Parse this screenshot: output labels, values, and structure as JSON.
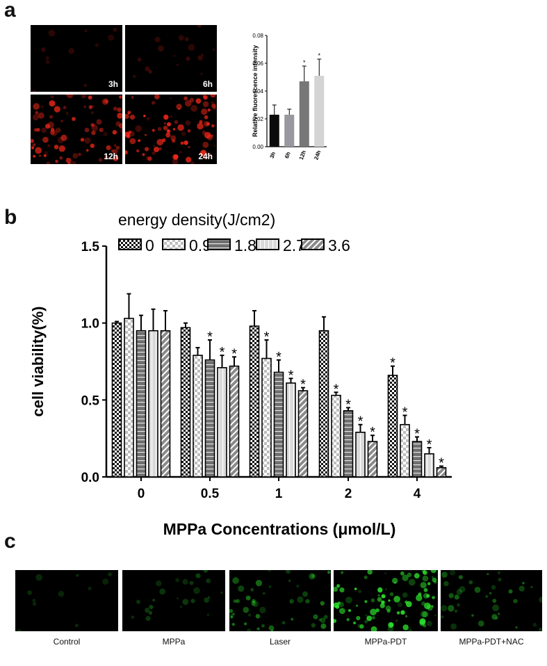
{
  "panels": {
    "a": {
      "letter": "a",
      "images": [
        {
          "label": "3h",
          "level": 0.05
        },
        {
          "label": "6h",
          "level": 0.12
        },
        {
          "label": "12h",
          "level": 0.85
        },
        {
          "label": "24h",
          "level": 0.95
        }
      ],
      "cell_color": "#ff2a1a"
    },
    "b": {
      "letter": "b"
    },
    "c": {
      "letter": "c",
      "images": [
        {
          "label": "Control",
          "level": 0.05
        },
        {
          "label": "MPPa",
          "level": 0.2
        },
        {
          "label": "Laser",
          "level": 0.45
        },
        {
          "label": "MPPa-PDT",
          "level": 1.0
        },
        {
          "label": "MPPa-PDT+NAC",
          "level": 0.35
        }
      ],
      "cell_color": "#2ee82e"
    }
  },
  "chart_data": [
    {
      "type": "bar",
      "categories": [
        "3h",
        "6h",
        "12h",
        "24h"
      ],
      "values": [
        0.023,
        0.023,
        0.047,
        0.051
      ],
      "errors": [
        0.007,
        0.004,
        0.011,
        0.012
      ],
      "significance": [
        "",
        "",
        "*",
        "*"
      ],
      "colors": [
        "#0b0b0b",
        "#98989e",
        "#777777",
        "#d4d4d4"
      ],
      "ylabel": "Relative fluorescence intensity",
      "xlabel": "",
      "ylim": [
        0,
        0.08
      ],
      "yticks": [
        "0.00",
        "0.02",
        "0.04",
        "0.06",
        "0.08"
      ],
      "grid": false
    },
    {
      "type": "bar",
      "categories": [
        "0",
        "0.5",
        "1",
        "2",
        "4"
      ],
      "xlabel": "MPPa Concentrations (μmol/L)",
      "ylabel": "cell viability(%)",
      "legend_title": "energy density(J/cm2)",
      "legend_placement": "top",
      "ylim": [
        0,
        1.5
      ],
      "yticks": [
        "0.0",
        "0.5",
        "1.0",
        "1.5"
      ],
      "grid": false,
      "series": [
        {
          "name": "0",
          "pattern": "checker-dark",
          "values": [
            1.0,
            0.97,
            0.98,
            0.95,
            0.66
          ],
          "errors": [
            0.01,
            0.03,
            0.1,
            0.09,
            0.06
          ],
          "significance": [
            "",
            "",
            "",
            "",
            "*"
          ]
        },
        {
          "name": "0.9",
          "pattern": "checker-light",
          "values": [
            1.03,
            0.79,
            0.77,
            0.53,
            0.34
          ],
          "errors": [
            0.16,
            0.05,
            0.12,
            0.02,
            0.06
          ],
          "significance": [
            "",
            "",
            "*",
            "*",
            "*"
          ]
        },
        {
          "name": "1.8",
          "pattern": "hlines",
          "values": [
            0.95,
            0.76,
            0.68,
            0.43,
            0.23
          ],
          "errors": [
            0.1,
            0.13,
            0.08,
            0.02,
            0.03
          ],
          "significance": [
            "",
            "*",
            "*",
            "*",
            "*"
          ]
        },
        {
          "name": "2.7",
          "pattern": "vlines",
          "values": [
            0.95,
            0.71,
            0.61,
            0.29,
            0.15
          ],
          "errors": [
            0.14,
            0.08,
            0.03,
            0.05,
            0.04
          ],
          "significance": [
            "",
            "*",
            "*",
            "*",
            "*"
          ]
        },
        {
          "name": "3.6",
          "pattern": "diag",
          "values": [
            0.95,
            0.72,
            0.56,
            0.23,
            0.06
          ],
          "errors": [
            0.13,
            0.06,
            0.02,
            0.04,
            0.01
          ],
          "significance": [
            "",
            "*",
            "*",
            "*",
            "*"
          ]
        }
      ]
    }
  ]
}
